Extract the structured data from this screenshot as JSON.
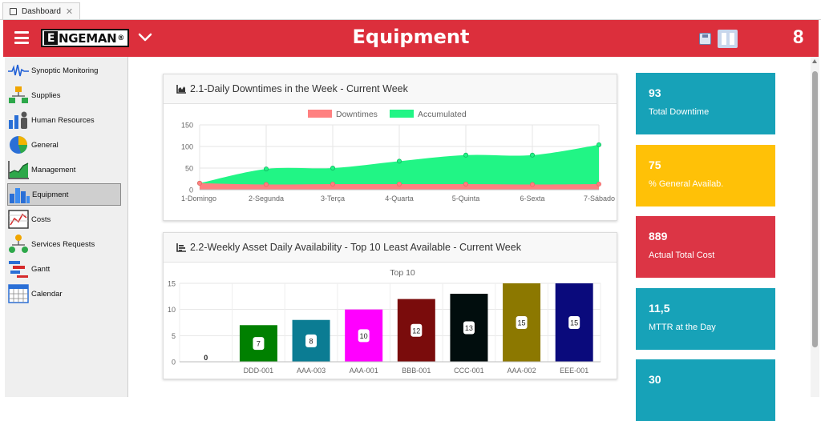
{
  "tab": {
    "label": "Dashboard"
  },
  "header": {
    "title": "Equipment",
    "logo_text": "ENGEMAN",
    "counter": "8"
  },
  "sidebar": {
    "items": [
      {
        "label": "Synoptic Monitoring",
        "icon": "synoptic-icon"
      },
      {
        "label": "Supplies",
        "icon": "supplies-icon"
      },
      {
        "label": "Human Resources",
        "icon": "human-resources-icon"
      },
      {
        "label": "General",
        "icon": "general-pie-icon"
      },
      {
        "label": "Management",
        "icon": "management-chart-icon"
      },
      {
        "label": "Equipment",
        "icon": "equipment-bars-icon",
        "active": true
      },
      {
        "label": "Costs",
        "icon": "costs-icon"
      },
      {
        "label": "Services Requests",
        "icon": "services-requests-icon"
      },
      {
        "label": "Gantt",
        "icon": "gantt-icon"
      },
      {
        "label": "Calendar",
        "icon": "calendar-icon"
      }
    ]
  },
  "kpis": [
    {
      "value": "93",
      "label": "Total Downtime",
      "color": "#17a2b8"
    },
    {
      "value": "75",
      "label": "% General Availab.",
      "color": "#ffc107"
    },
    {
      "value": "889",
      "label": "Actual Total Cost",
      "color": "#dc3545"
    },
    {
      "value": "11,5",
      "label": "MTTR at the Day",
      "color": "#17a2b8"
    },
    {
      "value": "30",
      "label": "",
      "color": "#17a2b8"
    }
  ],
  "chart1": {
    "card_title": "2.1-Daily Downtimes in the Week - Current Week",
    "chart_data": {
      "type": "area",
      "categories": [
        "1-Domingo",
        "2-Segunda",
        "3-Terça",
        "4-Quarta",
        "5-Quinta",
        "6-Sexta",
        "7-Sábado"
      ],
      "series": [
        {
          "name": "Downtimes",
          "values": [
            15,
            12,
            13,
            13,
            13,
            12,
            13
          ],
          "color": "#ff8080"
        },
        {
          "name": "Accumulated",
          "values": [
            15,
            48,
            50,
            66,
            80,
            80,
            104
          ],
          "color": "#21f585"
        }
      ],
      "ylim": [
        0,
        150
      ],
      "yticks": [
        0,
        50,
        100,
        150
      ],
      "legend": "top-center",
      "grid": true
    }
  },
  "chart2": {
    "card_title": "2.2-Weekly Asset Daily Availability - Top 10 Least Available - Current Week",
    "chart_data": {
      "type": "bar",
      "title": "Top 10",
      "categories": [
        "",
        "DDD-001",
        "AAA-003",
        "AAA-001",
        "BBB-001",
        "CCC-001",
        "AAA-002",
        "EEE-001"
      ],
      "values": [
        0,
        7,
        8,
        10,
        12,
        13,
        15,
        15
      ],
      "colors": [
        "#008000",
        "#008000",
        "#0b7c93",
        "#ff00ff",
        "#7a0c0c",
        "#010d0d",
        "#8c7800",
        "#0a0a7c"
      ],
      "ylim": [
        0,
        15
      ],
      "yticks": [
        0,
        5,
        10,
        15
      ],
      "grid": true
    }
  }
}
